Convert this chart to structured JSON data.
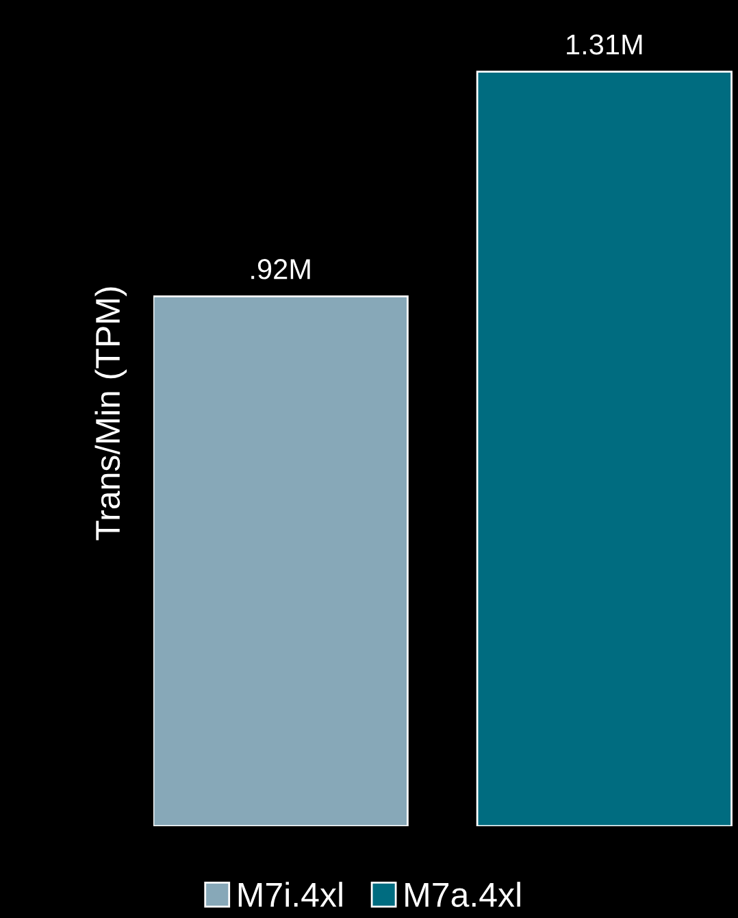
{
  "chart_data": {
    "type": "bar",
    "ylabel": "Trans/Min (TPM)",
    "categories": [
      null
    ],
    "series": [
      {
        "name": "M7i.4xl",
        "color": "#87a8b8",
        "values": [
          0.92
        ],
        "value_labels": [
          ".92M"
        ]
      },
      {
        "name": "M7a.4xl",
        "color": "#006c80",
        "values": [
          1.31
        ],
        "value_labels": [
          "1.31M"
        ]
      }
    ],
    "legend": "bottom",
    "grid": false
  }
}
